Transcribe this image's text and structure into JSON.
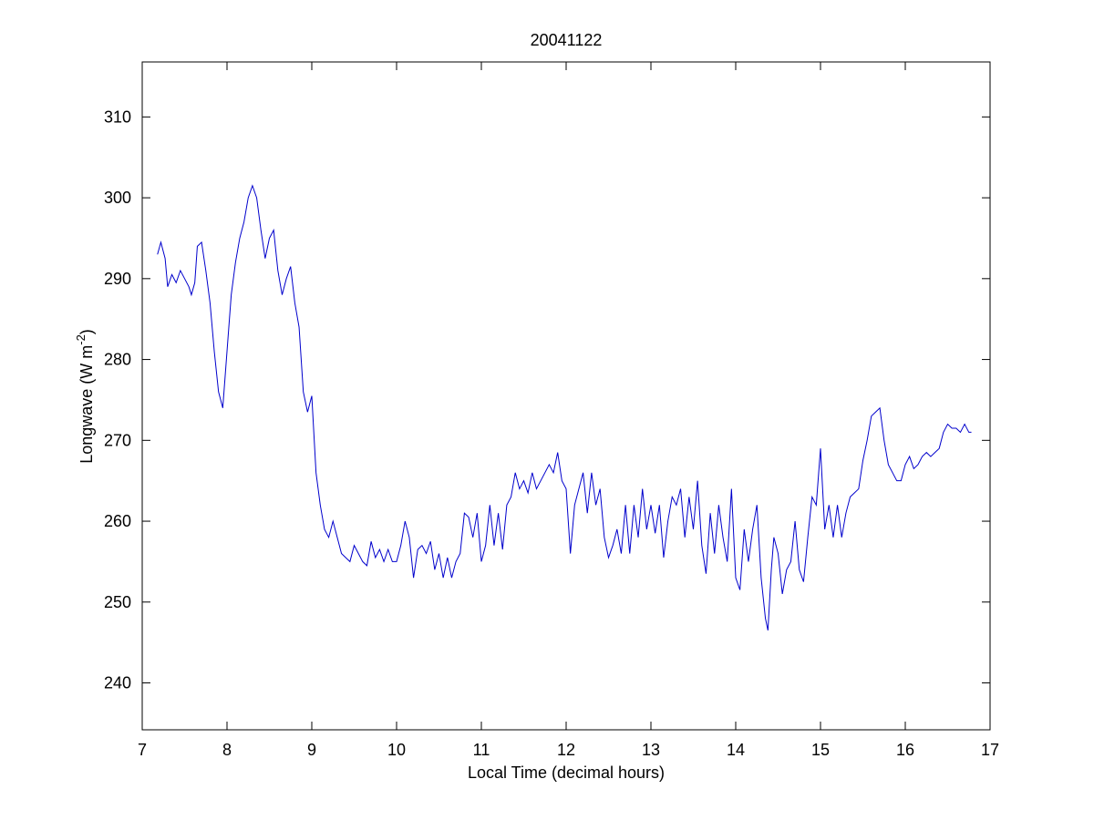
{
  "chart_data": {
    "type": "line",
    "title": "20041122",
    "xlabel": "Local Time (decimal hours)",
    "ylabel": {
      "text": "Longwave (W m",
      "superscript": "-2",
      "close": ")"
    },
    "xlim": [
      7,
      17
    ],
    "xticks": [
      7,
      8,
      9,
      10,
      11,
      12,
      13,
      14,
      15,
      16,
      17
    ],
    "ylim": [
      234.2,
      316.8
    ],
    "yticks": [
      240,
      250,
      260,
      270,
      280,
      290,
      300,
      310
    ],
    "grid": false,
    "series": [
      {
        "color": "#0000cc",
        "x": [
          7.18,
          7.22,
          7.27,
          7.3,
          7.35,
          7.4,
          7.45,
          7.5,
          7.55,
          7.58,
          7.62,
          7.65,
          7.7,
          7.75,
          7.8,
          7.85,
          7.9,
          7.95,
          8.0,
          8.05,
          8.1,
          8.15,
          8.2,
          8.25,
          8.3,
          8.35,
          8.4,
          8.45,
          8.5,
          8.55,
          8.6,
          8.65,
          8.7,
          8.75,
          8.8,
          8.85,
          8.9,
          8.95,
          9.0,
          9.05,
          9.1,
          9.15,
          9.2,
          9.25,
          9.3,
          9.35,
          9.4,
          9.45,
          9.5,
          9.55,
          9.6,
          9.65,
          9.7,
          9.75,
          9.8,
          9.85,
          9.9,
          9.95,
          10.0,
          10.05,
          10.1,
          10.15,
          10.2,
          10.25,
          10.3,
          10.35,
          10.4,
          10.45,
          10.5,
          10.55,
          10.6,
          10.65,
          10.7,
          10.75,
          10.8,
          10.85,
          10.9,
          10.95,
          11.0,
          11.05,
          11.1,
          11.15,
          11.2,
          11.25,
          11.3,
          11.35,
          11.4,
          11.45,
          11.5,
          11.55,
          11.6,
          11.65,
          11.7,
          11.75,
          11.8,
          11.85,
          11.9,
          11.95,
          12.0,
          12.05,
          12.1,
          12.15,
          12.2,
          12.25,
          12.3,
          12.35,
          12.4,
          12.45,
          12.5,
          12.55,
          12.6,
          12.65,
          12.7,
          12.75,
          12.8,
          12.85,
          12.9,
          12.95,
          13.0,
          13.05,
          13.1,
          13.15,
          13.2,
          13.25,
          13.3,
          13.35,
          13.4,
          13.45,
          13.5,
          13.55,
          13.6,
          13.65,
          13.7,
          13.75,
          13.8,
          13.85,
          13.9,
          13.95,
          14.0,
          14.05,
          14.1,
          14.15,
          14.2,
          14.25,
          14.3,
          14.35,
          14.38,
          14.42,
          14.45,
          14.5,
          14.55,
          14.6,
          14.65,
          14.7,
          14.75,
          14.8,
          14.85,
          14.9,
          14.95,
          15.0,
          15.05,
          15.1,
          15.15,
          15.2,
          15.25,
          15.3,
          15.35,
          15.4,
          15.45,
          15.5,
          15.55,
          15.6,
          15.65,
          15.7,
          15.75,
          15.8,
          15.85,
          15.9,
          15.95,
          16.0,
          16.05,
          16.1,
          16.15,
          16.2,
          16.25,
          16.3,
          16.35,
          16.4,
          16.45,
          16.5,
          16.55,
          16.6,
          16.65,
          16.7,
          16.75,
          16.78
        ],
        "values": [
          293,
          294.5,
          292.5,
          289,
          290.5,
          289.5,
          291,
          290,
          289,
          288,
          289.5,
          294,
          294.5,
          291,
          287,
          281,
          276,
          274,
          281,
          288,
          292,
          295,
          297,
          300,
          301.5,
          300,
          296,
          292.5,
          295,
          296,
          291,
          288,
          290,
          291.5,
          287,
          284,
          276,
          273.5,
          275.5,
          266,
          262,
          259,
          258,
          260,
          258,
          256,
          255.5,
          255,
          257,
          256,
          255,
          254.5,
          257.5,
          255.5,
          256.5,
          255,
          256.5,
          255,
          255,
          257,
          260,
          258,
          253,
          256.5,
          257,
          256,
          257.5,
          254,
          256,
          253,
          255.5,
          253,
          255,
          256,
          261,
          260.5,
          258,
          261,
          255,
          257,
          262,
          257,
          261,
          256.5,
          262,
          263,
          266,
          264,
          265,
          263.5,
          266,
          264,
          265,
          266,
          267,
          266,
          268.5,
          265,
          264,
          256,
          262,
          264,
          266,
          261,
          266,
          262,
          264,
          258,
          255.5,
          257,
          259,
          256,
          262,
          256,
          262,
          258,
          264,
          259,
          262,
          258.5,
          262,
          255.5,
          260,
          263,
          262,
          264,
          258,
          263,
          259,
          265,
          257,
          253.5,
          261,
          256,
          262,
          258,
          255,
          264,
          253,
          251.5,
          259,
          255,
          259,
          262,
          253,
          248,
          246.5,
          254,
          258,
          256,
          251,
          254,
          255,
          260,
          254,
          252.5,
          258,
          263,
          262,
          269,
          259,
          262,
          258,
          262,
          258,
          261,
          263,
          263.5,
          264,
          267.5,
          270,
          273,
          273.5,
          274,
          270,
          267,
          266,
          265,
          265,
          267,
          268,
          266.5,
          267,
          268,
          268.5,
          268,
          268.5,
          269,
          271,
          272,
          271.5,
          271.5,
          271,
          272,
          271,
          271
        ]
      }
    ]
  }
}
